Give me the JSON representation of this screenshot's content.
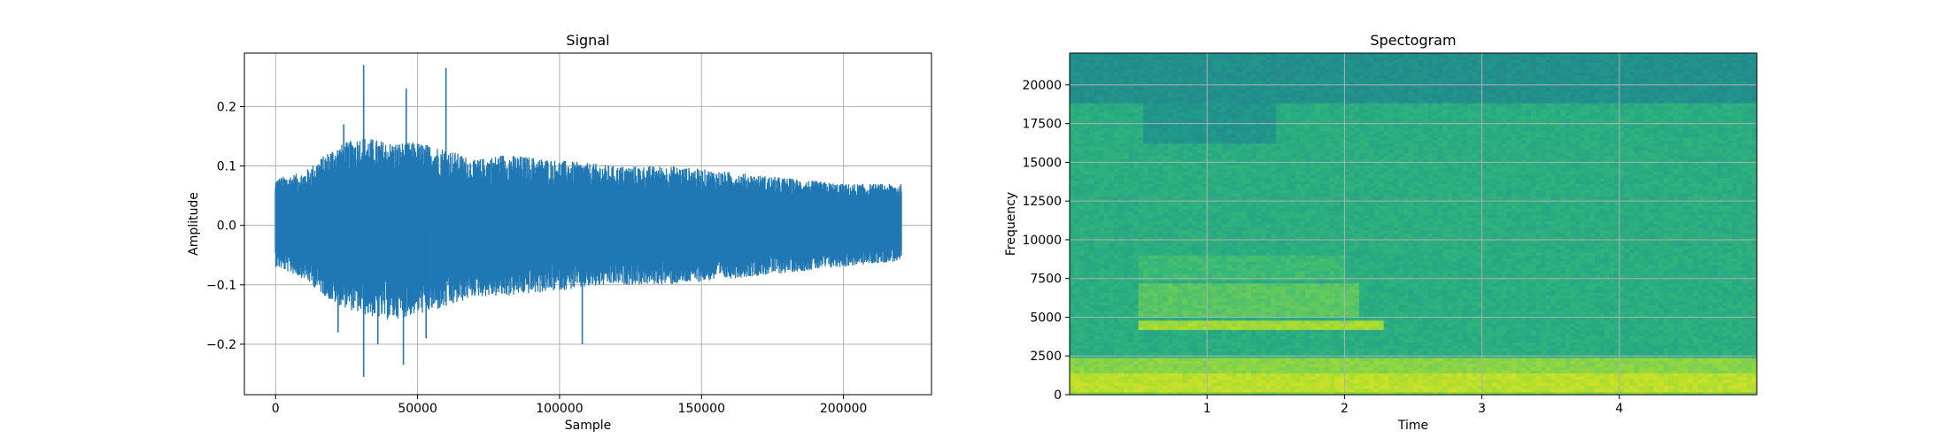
{
  "chart_data": [
    {
      "type": "line",
      "title": "Signal",
      "xlabel": "Sample",
      "ylabel": "Amplitude",
      "xlim": [
        -11000,
        231000
      ],
      "ylim": [
        -0.285,
        0.29
      ],
      "xticks": [
        0,
        50000,
        100000,
        150000,
        200000
      ],
      "yticks": [
        -0.2,
        -0.1,
        0.0,
        0.1,
        0.2
      ],
      "xtick_labels": [
        "0",
        "50000",
        "100000",
        "150000",
        "200000"
      ],
      "ytick_labels": [
        "−0.2",
        "−0.1",
        "0.0",
        "0.1",
        "0.2"
      ],
      "grid": true,
      "color": "#1f77b4",
      "x_range": [
        0,
        220500
      ],
      "envelope": {
        "x": [
          0,
          10000,
          20000,
          30000,
          40000,
          50000,
          60000,
          70000,
          80000,
          100000,
          120000,
          140000,
          160000,
          180000,
          200000,
          220500
        ],
        "upper": [
          0.08,
          0.09,
          0.13,
          0.15,
          0.14,
          0.14,
          0.13,
          0.11,
          0.12,
          0.11,
          0.1,
          0.1,
          0.09,
          0.08,
          0.07,
          0.07
        ],
        "lower": [
          -0.07,
          -0.09,
          -0.13,
          -0.15,
          -0.16,
          -0.15,
          -0.14,
          -0.12,
          -0.12,
          -0.11,
          -0.1,
          -0.1,
          -0.09,
          -0.08,
          -0.07,
          -0.06
        ]
      },
      "peaks": [
        {
          "x": 31000,
          "y": 0.27
        },
        {
          "x": 31000,
          "y": -0.255
        },
        {
          "x": 46000,
          "y": 0.23
        },
        {
          "x": 45000,
          "y": -0.235
        },
        {
          "x": 60000,
          "y": 0.265
        },
        {
          "x": 24000,
          "y": 0.17
        },
        {
          "x": 36000,
          "y": -0.2
        },
        {
          "x": 108000,
          "y": -0.2
        },
        {
          "x": 53000,
          "y": -0.19
        },
        {
          "x": 22000,
          "y": -0.18
        }
      ]
    },
    {
      "type": "heatmap",
      "title": "Spectogram",
      "xlabel": "Time",
      "ylabel": "Frequency",
      "xlim": [
        0,
        5.0
      ],
      "ylim": [
        0,
        22050
      ],
      "xticks": [
        1,
        2,
        3,
        4
      ],
      "yticks": [
        0,
        2500,
        5000,
        7500,
        10000,
        12500,
        15000,
        17500,
        20000
      ],
      "xtick_labels": [
        "1",
        "2",
        "3",
        "4"
      ],
      "ytick_labels": [
        "0",
        "2500",
        "5000",
        "7500",
        "10000",
        "12500",
        "15000",
        "17500",
        "20000"
      ],
      "grid": true,
      "colormap": "viridis",
      "bands": [
        {
          "f0": 18800,
          "f1": 22050,
          "level": 0.5
        },
        {
          "f0": 2500,
          "f1": 18800,
          "level": 0.62
        },
        {
          "f0": 0,
          "f1": 2500,
          "level": 0.82
        },
        {
          "f0": 300,
          "f1": 1500,
          "level": 0.9
        }
      ],
      "features": [
        {
          "t0": 0.55,
          "t1": 1.5,
          "f0": 16200,
          "f1": 18800,
          "level": 0.52
        },
        {
          "t0": 0.5,
          "t1": 2.3,
          "f0": 4200,
          "f1": 4800,
          "level": 0.86
        },
        {
          "t0": 0.5,
          "t1": 2.1,
          "f0": 5000,
          "f1": 7200,
          "level": 0.74
        },
        {
          "t0": 0.5,
          "t1": 2.0,
          "f0": 7500,
          "f1": 9000,
          "level": 0.68
        }
      ]
    }
  ]
}
